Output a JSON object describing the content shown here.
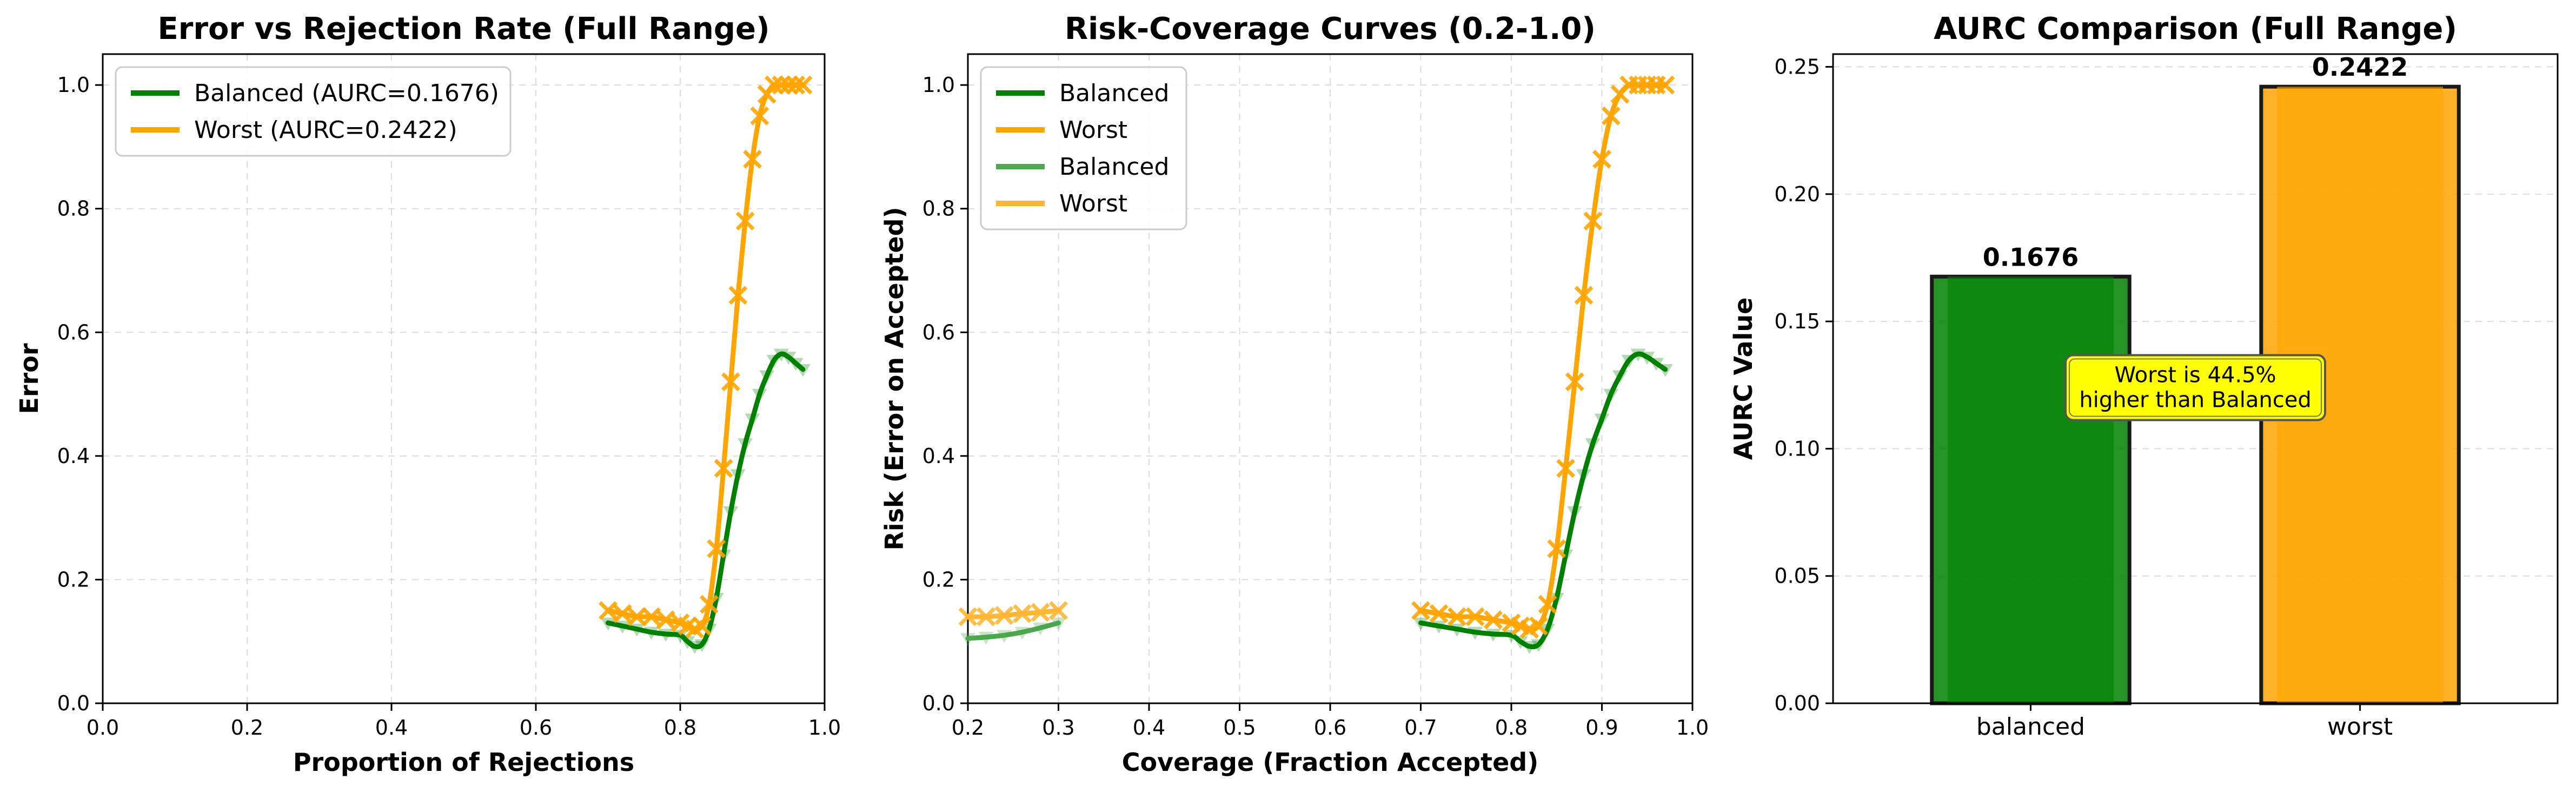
{
  "chart_data": [
    {
      "type": "line",
      "title": "Error vs Rejection Rate (Full Range)",
      "xlabel": "Proportion of Rejections",
      "ylabel": "Error",
      "xlim": [
        0.0,
        1.0
      ],
      "ylim": [
        0.0,
        1.05
      ],
      "xticks": [
        "0.0",
        "0.2",
        "0.4",
        "0.6",
        "0.8",
        "1.0"
      ],
      "yticks": [
        "0.0",
        "0.2",
        "0.4",
        "0.6",
        "0.8",
        "1.0"
      ],
      "grid": true,
      "legend_position": "upper-left",
      "series": [
        {
          "name": "Balanced (AURC=0.1676)",
          "color": "#008000",
          "marker": "triangle-down",
          "x": [
            0.7,
            0.72,
            0.74,
            0.76,
            0.78,
            0.8,
            0.81,
            0.82,
            0.83,
            0.84,
            0.85,
            0.86,
            0.87,
            0.88,
            0.89,
            0.9,
            0.91,
            0.92,
            0.93,
            0.94,
            0.95,
            0.96,
            0.97
          ],
          "y": [
            0.13,
            0.125,
            0.12,
            0.115,
            0.112,
            0.11,
            0.1,
            0.092,
            0.095,
            0.12,
            0.17,
            0.24,
            0.31,
            0.37,
            0.42,
            0.46,
            0.5,
            0.53,
            0.555,
            0.565,
            0.56,
            0.55,
            0.54
          ]
        },
        {
          "name": "Worst (AURC=0.2422)",
          "color": "#FFA500",
          "marker": "x",
          "x": [
            0.7,
            0.72,
            0.74,
            0.76,
            0.78,
            0.8,
            0.81,
            0.82,
            0.83,
            0.84,
            0.85,
            0.86,
            0.87,
            0.88,
            0.89,
            0.9,
            0.91,
            0.92,
            0.93,
            0.94,
            0.95,
            0.96,
            0.97
          ],
          "y": [
            0.15,
            0.145,
            0.14,
            0.14,
            0.135,
            0.13,
            0.125,
            0.12,
            0.125,
            0.16,
            0.25,
            0.38,
            0.52,
            0.66,
            0.78,
            0.88,
            0.95,
            0.985,
            1.0,
            1.0,
            1.0,
            1.0,
            1.0
          ]
        }
      ]
    },
    {
      "type": "line",
      "title": "Risk-Coverage Curves (0.2-1.0)",
      "xlabel": "Coverage (Fraction Accepted)",
      "ylabel": "Risk (Error on Accepted)",
      "xlim": [
        0.2,
        1.0
      ],
      "ylim": [
        0.0,
        1.05
      ],
      "xticks": [
        "0.2",
        "0.3",
        "0.4",
        "0.5",
        "0.6",
        "0.7",
        "0.8",
        "0.9",
        "1.0"
      ],
      "yticks": [
        "0.0",
        "0.2",
        "0.4",
        "0.6",
        "0.8",
        "1.0"
      ],
      "grid": true,
      "legend_position": "upper-left",
      "series": [
        {
          "name": "Balanced",
          "color": "#008000",
          "marker": "triangle-down",
          "x": [
            0.7,
            0.72,
            0.74,
            0.76,
            0.78,
            0.8,
            0.81,
            0.82,
            0.83,
            0.84,
            0.85,
            0.86,
            0.87,
            0.88,
            0.89,
            0.9,
            0.91,
            0.92,
            0.93,
            0.94,
            0.95,
            0.96,
            0.97
          ],
          "y": [
            0.13,
            0.125,
            0.12,
            0.115,
            0.112,
            0.11,
            0.1,
            0.092,
            0.095,
            0.12,
            0.17,
            0.24,
            0.31,
            0.37,
            0.42,
            0.46,
            0.5,
            0.53,
            0.555,
            0.565,
            0.56,
            0.55,
            0.54
          ]
        },
        {
          "name": "Worst",
          "color": "#FFA500",
          "marker": "x",
          "x": [
            0.7,
            0.72,
            0.74,
            0.76,
            0.78,
            0.8,
            0.81,
            0.82,
            0.83,
            0.84,
            0.85,
            0.86,
            0.87,
            0.88,
            0.89,
            0.9,
            0.91,
            0.92,
            0.93,
            0.94,
            0.95,
            0.96,
            0.97
          ],
          "y": [
            0.15,
            0.145,
            0.14,
            0.14,
            0.135,
            0.13,
            0.125,
            0.12,
            0.125,
            0.16,
            0.25,
            0.38,
            0.52,
            0.66,
            0.78,
            0.88,
            0.95,
            0.985,
            1.0,
            1.0,
            1.0,
            1.0,
            1.0
          ]
        },
        {
          "name": "Balanced",
          "color": "#4CA64C",
          "marker": "triangle-down",
          "x": [
            0.2,
            0.22,
            0.24,
            0.26,
            0.28,
            0.3
          ],
          "y": [
            0.105,
            0.107,
            0.11,
            0.115,
            0.122,
            0.13
          ]
        },
        {
          "name": "Worst",
          "color": "#FFB733",
          "marker": "x",
          "x": [
            0.2,
            0.22,
            0.24,
            0.26,
            0.28,
            0.3
          ],
          "y": [
            0.14,
            0.14,
            0.142,
            0.145,
            0.147,
            0.15
          ]
        }
      ]
    },
    {
      "type": "bar",
      "title": "AURC Comparison (Full Range)",
      "xlabel": "",
      "ylabel": "AURC Value",
      "categories": [
        "balanced",
        "worst"
      ],
      "values": [
        0.1676,
        0.2422
      ],
      "value_labels": [
        "0.1676",
        "0.2422"
      ],
      "colors": [
        "#008000",
        "#FFA500"
      ],
      "ylim": [
        0.0,
        0.255
      ],
      "yticks": [
        "0.00",
        "0.05",
        "0.10",
        "0.15",
        "0.20",
        "0.25"
      ],
      "grid": true,
      "annotation": {
        "lines": [
          "Worst is 44.5%",
          "higher than Balanced"
        ],
        "background": "#FFFF00"
      }
    }
  ]
}
